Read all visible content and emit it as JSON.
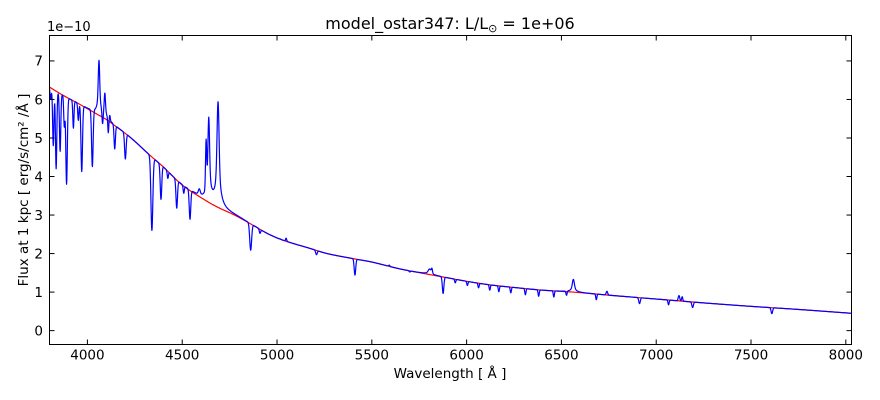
{
  "figure_title": "model_ostar347: L/L⊙ = 1e+06",
  "chart": {
    "title_parts": [
      "model_ostar347: L/L",
      "⊙",
      " = 1e+06"
    ],
    "xlabel": "Wavelength [ Å ]",
    "ylabel": "Flux at 1 kpc [ erg/s/cm² /Å ]",
    "y_offset_text": "1e−10"
  },
  "chart_data": {
    "type": "line",
    "title": "model_ostar347: L/L⊙ = 1e+06",
    "xlabel": "Wavelength [ Å ]",
    "ylabel": "Flux at 1 kpc [ erg/s/cm² /Å ]",
    "y_offset_factor": "1e−10",
    "xlim": [
      3800,
      8030
    ],
    "ylim": [
      -0.36,
      7.66
    ],
    "xticks": [
      4000,
      4500,
      5000,
      5500,
      6000,
      6500,
      7000,
      7500,
      8000
    ],
    "yticks": [
      0,
      1,
      2,
      3,
      4,
      5,
      6,
      7
    ],
    "grid": false,
    "legend": "none",
    "colors": {
      "spectrum": "#0000ff",
      "continuum": "#ff0000",
      "frame": "#000000",
      "background": "#ffffff"
    },
    "series": [
      {
        "name": "continuum-fit",
        "color": "#ff0000",
        "units": "wavelength_angstrom_vs_flux_1e-10_erg_s_cm2_A",
        "points": [
          [
            3800,
            6.32
          ],
          [
            3850,
            6.17
          ],
          [
            3900,
            6.03
          ],
          [
            3950,
            5.9
          ],
          [
            4000,
            5.76
          ],
          [
            4050,
            5.62
          ],
          [
            4100,
            5.48
          ],
          [
            4150,
            5.3
          ],
          [
            4230,
            5.0
          ],
          [
            4330,
            4.55
          ],
          [
            4400,
            4.25
          ],
          [
            4500,
            3.78
          ],
          [
            4600,
            3.45
          ],
          [
            4680,
            3.22
          ],
          [
            4776,
            3.0
          ],
          [
            4854,
            2.79
          ],
          [
            4950,
            2.52
          ],
          [
            5030,
            2.35
          ],
          [
            5170,
            2.14
          ],
          [
            5265,
            2.0
          ],
          [
            5411,
            1.86
          ],
          [
            5500,
            1.78
          ],
          [
            5650,
            1.6
          ],
          [
            5800,
            1.46
          ],
          [
            5900,
            1.37
          ],
          [
            6000,
            1.28
          ],
          [
            6120,
            1.19
          ],
          [
            6250,
            1.12
          ],
          [
            6400,
            1.05
          ],
          [
            6563,
            1.0
          ],
          [
            6750,
            0.92
          ],
          [
            7000,
            0.82
          ],
          [
            7250,
            0.72
          ],
          [
            7500,
            0.63
          ],
          [
            7750,
            0.55
          ],
          [
            8030,
            0.45
          ]
        ]
      },
      {
        "name": "model-spectrum",
        "color": "#0000ff",
        "construction": "continuum_plus_lines",
        "line_format": [
          "wavelength_A",
          "flux_at_extremum_1e-10",
          "width_A",
          "broad_wings"
        ],
        "lines": {
          "absorption": [
            [
              3806,
              6.0,
              3,
              0
            ],
            [
              3820,
              4.8,
              3.5,
              0
            ],
            [
              3835,
              4.2,
              3.5,
              0
            ],
            [
              3856,
              4.65,
              3.5,
              0
            ],
            [
              3878,
              5.3,
              3,
              0
            ],
            [
              3890,
              3.8,
              4,
              0
            ],
            [
              3926,
              5.25,
              3,
              0
            ],
            [
              3952,
              5.45,
              3,
              0
            ],
            [
              3970,
              4.12,
              4,
              0
            ],
            [
              4026,
              4.21,
              4,
              0
            ],
            [
              4080,
              5.18,
              3,
              0
            ],
            [
              4110,
              5.07,
              2.5,
              0
            ],
            [
              4144,
              4.7,
              3.5,
              0
            ],
            [
              4200,
              4.45,
              4,
              0
            ],
            [
              4340,
              2.6,
              5,
              0
            ],
            [
              4388,
              3.4,
              4,
              0
            ],
            [
              4424,
              3.95,
              3,
              0
            ],
            [
              4471,
              3.17,
              4,
              0
            ],
            [
              4508,
              3.55,
              3,
              0
            ],
            [
              4541,
              2.87,
              4,
              0
            ],
            [
              4861,
              2.08,
              5,
              0
            ],
            [
              4910,
              2.52,
              3.5,
              0
            ],
            [
              5016,
              2.38,
              4,
              0
            ],
            [
              5048,
              2.4,
              3,
              0
            ],
            [
              5112,
              2.22,
              3,
              0
            ],
            [
              5208,
              1.97,
              4,
              0
            ],
            [
              5411,
              1.44,
              4,
              0
            ],
            [
              5592,
              1.7,
              3,
              0
            ],
            [
              5700,
              1.52,
              3,
              0
            ],
            [
              5876,
              0.96,
              4,
              0
            ],
            [
              5940,
              1.24,
              3,
              0
            ],
            [
              6004,
              1.17,
              3,
              0
            ],
            [
              6063,
              1.11,
              3,
              0
            ],
            [
              6122,
              1.05,
              3,
              0
            ],
            [
              6170,
              1.01,
              3,
              0
            ],
            [
              6233,
              0.98,
              3,
              0
            ],
            [
              6310,
              0.93,
              3,
              0
            ],
            [
              6380,
              0.89,
              3,
              0
            ],
            [
              6460,
              0.87,
              3,
              0
            ],
            [
              6527,
              0.9,
              3,
              0
            ],
            [
              6684,
              0.8,
              3,
              0
            ],
            [
              6912,
              0.7,
              4,
              0
            ],
            [
              7065,
              0.67,
              3,
              0
            ],
            [
              7192,
              0.6,
              4,
              0
            ],
            [
              7610,
              0.44,
              4,
              0
            ]
          ],
          "emission": [
            [
              4061,
              7.0,
              3.5,
              1
            ],
            [
              4092,
              6.12,
              3,
              1
            ],
            [
              4118,
              5.55,
              2.5,
              0
            ],
            [
              4590,
              3.62,
              5,
              0
            ],
            [
              4626,
              4.6,
              3,
              0
            ],
            [
              4640,
              5.46,
              4,
              1
            ],
            [
              4689,
              5.9,
              5,
              1
            ],
            [
              5805,
              1.6,
              7,
              1
            ],
            [
              5817,
              1.56,
              3,
              0
            ],
            [
              6563,
              1.33,
              5,
              1
            ],
            [
              6740,
              1.02,
              4,
              0
            ],
            [
              7120,
              0.91,
              4,
              0
            ],
            [
              7137,
              0.88,
              3,
              0
            ]
          ]
        }
      }
    ]
  }
}
